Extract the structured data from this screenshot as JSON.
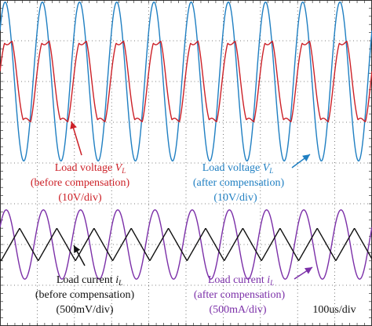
{
  "chart_data": {
    "type": "line",
    "time_base": "100us/div",
    "divisions": {
      "x": 10,
      "y": 8
    },
    "x_range": [
      0,
      1000
    ],
    "x_unit": "us",
    "colors": {
      "grid": "#555555",
      "frame": "#333333",
      "before_voltage": "#cc2027",
      "after_voltage": "#1f7fc2",
      "before_current": "#111111",
      "after_current": "#7b2fa8"
    },
    "series": [
      {
        "key": "vl_after",
        "color": "#1f7fc2",
        "frequency_khz": 10,
        "amplitude_div": 1.95,
        "offset_div": 2.0,
        "phase_deg": 40,
        "shape": "sine"
      },
      {
        "key": "vl_before",
        "color": "#cc2027",
        "frequency_khz": 10,
        "amplitude_div": 0.95,
        "offset_div": 2.0,
        "phase_deg": 10,
        "shape": "clipped-sine"
      },
      {
        "key": "il_after",
        "color": "#7b2fa8",
        "frequency_khz": 10,
        "amplitude_div": 0.85,
        "offset_div": -2.0,
        "phase_deg": 30,
        "shape": "sine"
      },
      {
        "key": "il_before",
        "color": "#111111",
        "frequency_khz": 10,
        "amplitude_div": 0.4,
        "offset_div": -2.0,
        "phase_deg": -10,
        "shape": "triangle"
      }
    ],
    "annotations": {
      "vl_before": {
        "line1": "Load voltage ",
        "symbol": "V",
        "sub": "L",
        "line2": "(before compensation)",
        "line3": "(10V/div)"
      },
      "vl_after": {
        "line1": "Load voltage ",
        "symbol": "V",
        "sub": "L",
        "line2": "(after compensation)",
        "line3": "(10V/div)"
      },
      "il_before": {
        "line1": "Load current ",
        "symbol": "i",
        "sub": "L",
        "line2": "(before compensation)",
        "line3": "(500mV/div)"
      },
      "il_after": {
        "line1": "Load current ",
        "symbol": "i",
        "sub": "L",
        "line2": "(after compensation)",
        "line3": "(500mA/div)"
      }
    }
  }
}
